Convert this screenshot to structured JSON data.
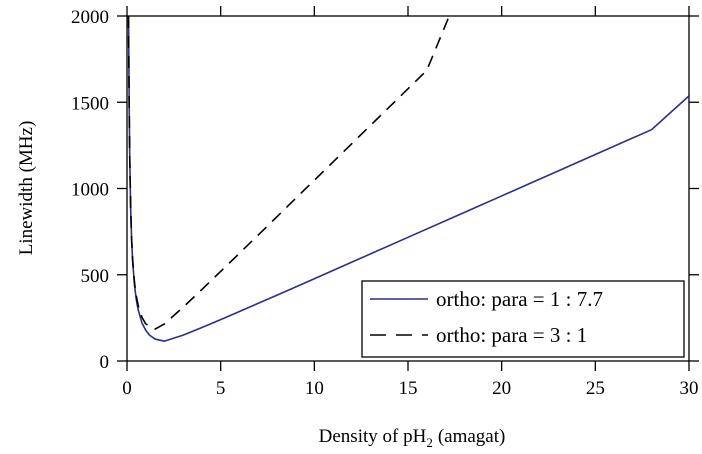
{
  "chart_data": {
    "type": "line",
    "xlabel": "Density of pH",
    "xlabel_sub": "2",
    "xlabel_unit": "(amagat)",
    "ylabel": "Linewidth (MHz)",
    "xlim": [
      0,
      30
    ],
    "ylim": [
      0,
      2000
    ],
    "xticks": [
      0,
      5,
      10,
      15,
      20,
      25,
      30
    ],
    "yticks": [
      0,
      500,
      1000,
      1500,
      2000
    ],
    "grid": false,
    "legend_position": "bottom-right",
    "series": [
      {
        "name": "ortho: para = 1 : 7.7",
        "color": "#2b2f8c",
        "style": "solid",
        "x": [
          0.08,
          0.1,
          0.12,
          0.15,
          0.2,
          0.25,
          0.3,
          0.4,
          0.5,
          0.6,
          0.8,
          1.0,
          1.2,
          1.5,
          2,
          3,
          4,
          5,
          6,
          8,
          10,
          12,
          15,
          18,
          20,
          22,
          25,
          28,
          30
        ],
        "y": [
          2000,
          1720,
          1435,
          1150,
          865,
          695,
          580,
          440,
          353,
          295,
          220,
          178,
          150,
          127,
          115,
          150,
          194,
          240,
          287,
          381,
          477,
          573,
          717,
          861,
          957,
          1053,
          1197,
          1341,
          1537
        ]
      },
      {
        "name": "ortho: para = 3 : 1",
        "color": "#000000",
        "style": "dashed",
        "x": [
          0.08,
          0.1,
          0.12,
          0.15,
          0.2,
          0.25,
          0.3,
          0.4,
          0.5,
          0.6,
          0.8,
          1.0,
          1.5,
          2,
          3,
          4,
          6,
          8,
          10,
          12,
          14,
          16,
          17.2
        ],
        "y": [
          2000,
          1720,
          1435,
          1150,
          870,
          700,
          590,
          455,
          375,
          320,
          253,
          215,
          185,
          215,
          312,
          415,
          624,
          836,
          1048,
          1260,
          1472,
          1684,
          2000
        ]
      }
    ]
  }
}
